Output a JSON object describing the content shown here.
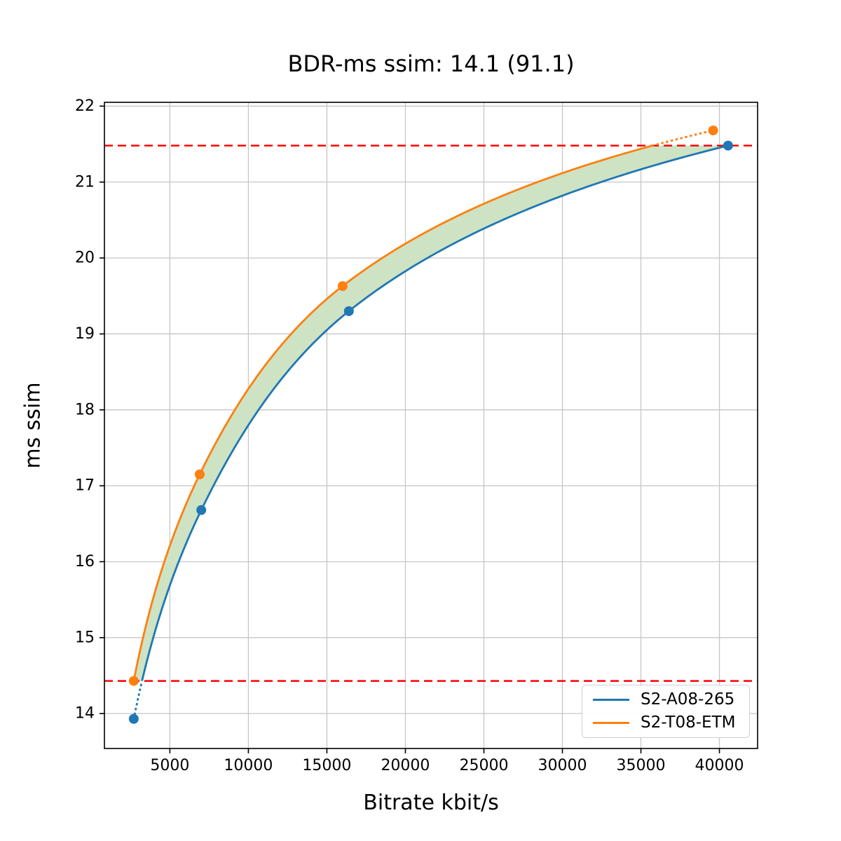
{
  "chart_data": {
    "type": "line",
    "title": "BDR-ms ssim: 14.1 (91.1)",
    "xlabel": "Bitrate kbit/s",
    "ylabel": "ms ssim",
    "xlim": [
      832,
      42431
    ],
    "ylim": [
      13.54,
      22.05
    ],
    "xticks": [
      5000,
      10000,
      15000,
      20000,
      25000,
      30000,
      35000,
      40000
    ],
    "yticks": [
      14,
      15,
      16,
      17,
      18,
      19,
      20,
      21,
      22
    ],
    "grid": true,
    "grid_color": "#c6c6c6",
    "legend_position": "lower right",
    "interpolation": "pchip-in-log-bitrate",
    "series": [
      {
        "name": "S2-A08-265",
        "color": "#1f77b4",
        "x": [
          2700,
          7000,
          16400,
          40550
        ],
        "y": [
          13.93,
          16.68,
          19.3,
          21.48
        ]
      },
      {
        "name": "S2-T08-ETM",
        "color": "#ff7f0e",
        "x": [
          2700,
          6900,
          16000,
          39600
        ],
        "y": [
          14.43,
          17.15,
          19.63,
          21.68
        ]
      }
    ],
    "overlap_band": {
      "quality_low": 14.43,
      "quality_high": 21.48,
      "line_color": "#ff0000",
      "line_style": "dashed",
      "fill_color": "#cde3c4"
    }
  }
}
